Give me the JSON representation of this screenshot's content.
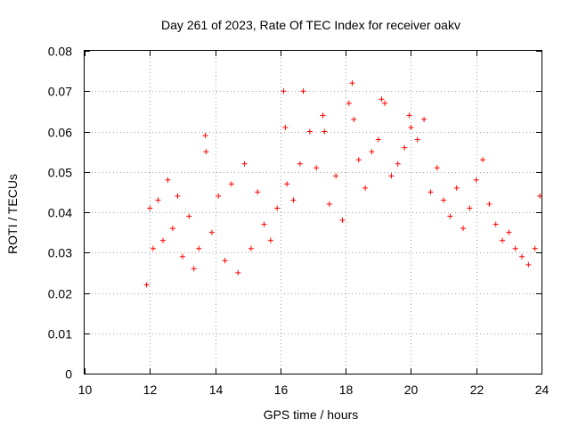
{
  "chart_data": {
    "type": "scatter",
    "title": "Day 261 of 2023, Rate Of TEC Index for receiver oakv",
    "xlabel": "GPS time / hours",
    "ylabel": "ROTI / TECUs",
    "xlim": [
      10,
      24
    ],
    "ylim": [
      0,
      0.08
    ],
    "x_ticks": [
      "10",
      "12",
      "14",
      "16",
      "18",
      "20",
      "22",
      "24"
    ],
    "y_ticks": [
      "0",
      "0.01",
      "0.02",
      "0.03",
      "0.04",
      "0.05",
      "0.06",
      "0.07",
      "0.08"
    ],
    "x_tick_values": [
      10,
      12,
      14,
      16,
      18,
      20,
      22,
      24
    ],
    "y_tick_values": [
      0,
      0.01,
      0.02,
      0.03,
      0.04,
      0.05,
      0.06,
      0.07,
      0.08
    ],
    "grid": true,
    "marker": "+",
    "color": "#ff0000",
    "series": [
      {
        "name": "ROTI",
        "x": [
          11.9,
          12.0,
          12.1,
          12.25,
          12.4,
          12.55,
          12.7,
          12.85,
          13.0,
          13.2,
          13.35,
          13.5,
          13.7,
          13.72,
          13.9,
          14.1,
          14.3,
          14.5,
          14.7,
          14.9,
          15.1,
          15.3,
          15.5,
          15.7,
          15.9,
          16.1,
          16.15,
          16.2,
          16.4,
          16.6,
          16.7,
          16.9,
          17.1,
          17.3,
          17.35,
          17.5,
          17.7,
          17.9,
          18.1,
          18.2,
          18.25,
          18.4,
          18.6,
          18.8,
          19.0,
          19.1,
          19.2,
          19.4,
          19.6,
          19.8,
          19.95,
          20.0,
          20.2,
          20.4,
          20.6,
          20.8,
          21.0,
          21.2,
          21.4,
          21.6,
          21.8,
          22.0,
          22.2,
          22.4,
          22.6,
          22.8,
          23.0,
          23.2,
          23.4,
          23.6,
          23.8,
          23.95
        ],
        "y": [
          0.022,
          0.041,
          0.031,
          0.043,
          0.033,
          0.048,
          0.036,
          0.044,
          0.029,
          0.039,
          0.026,
          0.031,
          0.059,
          0.055,
          0.035,
          0.044,
          0.028,
          0.047,
          0.025,
          0.052,
          0.031,
          0.045,
          0.037,
          0.033,
          0.041,
          0.07,
          0.061,
          0.047,
          0.043,
          0.052,
          0.07,
          0.06,
          0.051,
          0.064,
          0.06,
          0.042,
          0.049,
          0.038,
          0.067,
          0.072,
          0.063,
          0.053,
          0.046,
          0.055,
          0.058,
          0.068,
          0.067,
          0.049,
          0.052,
          0.056,
          0.064,
          0.061,
          0.058,
          0.063,
          0.045,
          0.051,
          0.043,
          0.039,
          0.046,
          0.036,
          0.041,
          0.048,
          0.053,
          0.042,
          0.037,
          0.033,
          0.035,
          0.031,
          0.029,
          0.027,
          0.031,
          0.044
        ]
      }
    ]
  }
}
